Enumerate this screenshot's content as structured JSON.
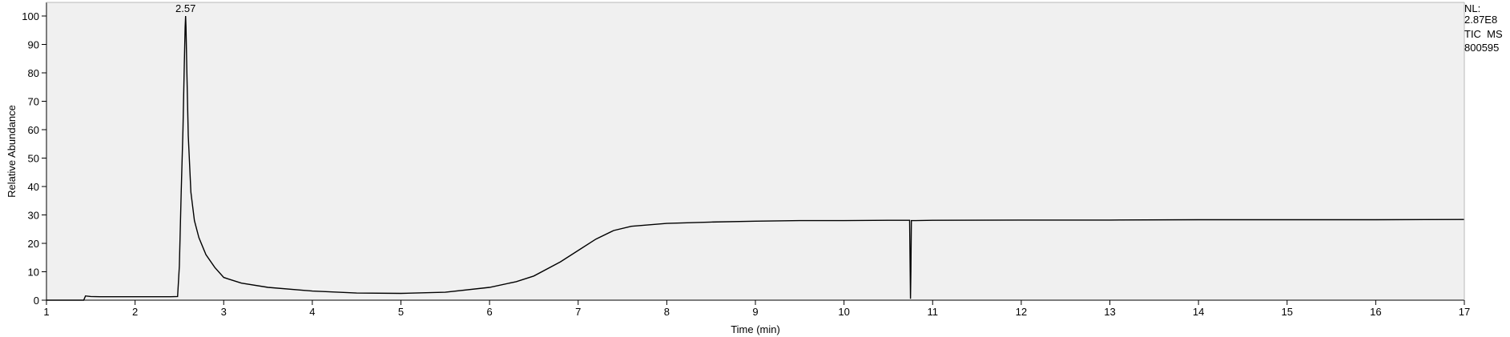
{
  "chart_data": {
    "type": "line",
    "title": "",
    "xlabel": "Time (min)",
    "ylabel": "Relative Abundance",
    "xlim": [
      1,
      17
    ],
    "ylim": [
      0,
      100
    ],
    "x_ticks": [
      1,
      2,
      3,
      4,
      5,
      6,
      7,
      8,
      9,
      10,
      11,
      12,
      13,
      14,
      15,
      16,
      17
    ],
    "y_ticks": [
      0,
      10,
      20,
      30,
      40,
      50,
      60,
      70,
      80,
      90,
      100
    ],
    "grid": false,
    "legend": "none",
    "colors": {
      "plot_background": "#f0f0f0",
      "trace": "#000000",
      "axis": "#000000"
    },
    "annotations": [
      {
        "text": "2.57",
        "x": 2.57,
        "y": 100
      }
    ],
    "info_lines": [
      "NL:",
      "2.87E8",
      "TIC  MS",
      "800595"
    ],
    "series": [
      {
        "x": [
          1.0,
          1.42,
          1.44,
          1.5,
          1.6,
          1.8,
          2.0,
          2.2,
          2.4,
          2.48,
          2.5,
          2.52,
          2.54,
          2.555,
          2.565,
          2.57,
          2.575,
          2.585,
          2.6,
          2.63,
          2.67,
          2.72,
          2.8,
          2.9,
          3.0,
          3.05,
          3.2,
          3.5,
          4.0,
          4.5,
          5.0,
          5.5,
          6.0,
          6.3,
          6.5,
          6.8,
          7.0,
          7.2,
          7.4,
          7.6,
          8.0,
          8.5,
          9.0,
          9.5,
          10.0,
          10.5,
          10.74,
          10.75,
          10.755,
          10.76,
          10.77,
          11.0,
          12.0,
          13.0,
          14.0,
          15.0,
          16.0,
          17.0
        ],
        "y": [
          0.0,
          0.0,
          1.5,
          1.3,
          1.2,
          1.2,
          1.2,
          1.2,
          1.2,
          1.3,
          12.0,
          38.0,
          60.0,
          82.0,
          96.0,
          100.0,
          96.0,
          80.0,
          58.0,
          38.0,
          28.0,
          22.0,
          16.0,
          11.5,
          8.0,
          7.5,
          6.0,
          4.5,
          3.2,
          2.5,
          2.4,
          2.8,
          4.5,
          6.5,
          8.5,
          13.5,
          17.5,
          21.5,
          24.5,
          26.0,
          27.0,
          27.5,
          27.8,
          28.0,
          28.0,
          28.1,
          28.1,
          0.5,
          10.0,
          28.0,
          28.0,
          28.1,
          28.2,
          28.2,
          28.3,
          28.3,
          28.3,
          28.4
        ]
      }
    ]
  }
}
